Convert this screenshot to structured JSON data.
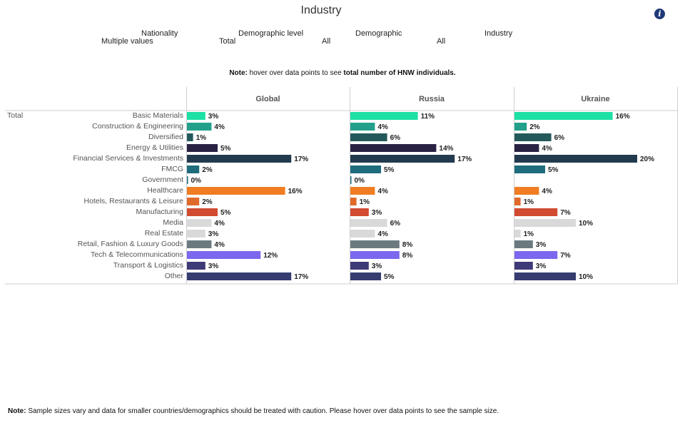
{
  "header": {
    "title": "Industry",
    "info_icon": "info-icon"
  },
  "filters": [
    {
      "label": "Nationality",
      "value": "Multiple values"
    },
    {
      "label": "Demographic level",
      "value": "Total"
    },
    {
      "label": "Demographic",
      "value": "All"
    },
    {
      "label": "Industry",
      "value": "All"
    }
  ],
  "notes": {
    "top_prefix": "Note:",
    "top_text": " hover over data points to see ",
    "top_bold": "total number of HNW individuals.",
    "bottom_prefix": "Note:",
    "bottom_text": " Sample sizes vary and data for smaller countries/demographics should be treated with caution. Please hover over data points to see the sample size."
  },
  "chart_data": {
    "type": "bar",
    "orientation": "horizontal",
    "row_group": "Total",
    "categories": [
      "Basic Materials",
      "Construction & Engineering",
      "Diversified",
      "Energy & Utilities",
      "Financial Services & Investments",
      "FMCG",
      "Government",
      "Healthcare",
      "Hotels, Restaurants & Leisure",
      "Manufacturing",
      "Media",
      "Real Estate",
      "Retail, Fashion & Luxury Goods",
      "Tech & Telecommunications",
      "Transport & Logistics",
      "Other"
    ],
    "colors": [
      "#1de0a4",
      "#22a08b",
      "#24595b",
      "#2a2243",
      "#233a4e",
      "#1f6c7c",
      "#1f6c7c",
      "#f07d23",
      "#e06a2b",
      "#d24a30",
      "#d9d9d9",
      "#d9d9d9",
      "#6b7a7f",
      "#7b68ee",
      "#3e3a78",
      "#363c70"
    ],
    "series": [
      {
        "name": "Global",
        "values": [
          3,
          4,
          1,
          5,
          17,
          2,
          0,
          16,
          2,
          5,
          4,
          3,
          4,
          12,
          3,
          17
        ],
        "labels": [
          "3%",
          "4%",
          "1%",
          "5%",
          "17%",
          "2%",
          "0%",
          "16%",
          "2%",
          "5%",
          "4%",
          "3%",
          "4%",
          "12%",
          "3%",
          "17%"
        ]
      },
      {
        "name": "Russia",
        "values": [
          11,
          4,
          6,
          14,
          17,
          5,
          0,
          4,
          1,
          3,
          6,
          4,
          8,
          8,
          3,
          5
        ],
        "labels": [
          "11%",
          "4%",
          "6%",
          "14%",
          "17%",
          "5%",
          "0%",
          "4%",
          "1%",
          "3%",
          "6%",
          "4%",
          "8%",
          "8%",
          "3%",
          "5%"
        ]
      },
      {
        "name": "Ukraine",
        "values": [
          16,
          2,
          6,
          4,
          20,
          5,
          null,
          4,
          1,
          7,
          10,
          1,
          3,
          7,
          3,
          10
        ],
        "labels": [
          "16%",
          "2%",
          "6%",
          "4%",
          "20%",
          "5%",
          "",
          "4%",
          "1%",
          "7%",
          "10%",
          "1%",
          "3%",
          "7%",
          "3%",
          "10%"
        ]
      }
    ],
    "value_unit": "%"
  }
}
